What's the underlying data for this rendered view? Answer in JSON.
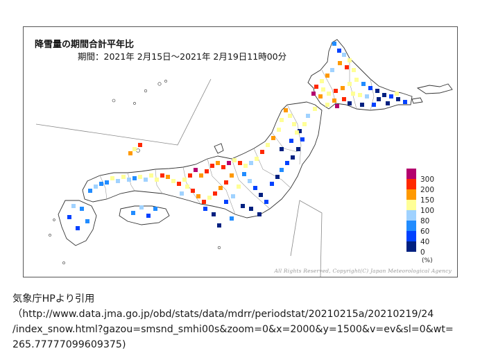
{
  "map": {
    "title": "降雪量の期間合計平年比",
    "period": "期間：2021年 2月15日～2021年 2月19日11時00分",
    "copyright": "All Rights Reserved, Copyright(C) Japan Meteorological Agency",
    "legend": {
      "unit": "(%)",
      "levels": [
        {
          "label": "300",
          "color": "#b4006e"
        },
        {
          "label": "200",
          "color": "#ff2800"
        },
        {
          "label": "150",
          "color": "#ff9900"
        },
        {
          "label": "100",
          "color": "#ffff96"
        },
        {
          "label": "80",
          "color": "#a0d2ff"
        },
        {
          "label": "60",
          "color": "#218cff"
        },
        {
          "label": "40",
          "color": "#0041ff"
        },
        {
          "label": "0",
          "color": "#002080"
        }
      ]
    }
  },
  "caption": {
    "line1": "気象庁HPより引用",
    "line2": "（http://www.data.jma.go.jp/obd/stats/data/mdrr/periodstat/20210215a/20210219/24",
    "line3": "/index_snow.html?gazou=smsnd_smhi00s&zoom=0&x=2000&y=1500&v=ev&sl=0&wt=",
    "line4": "265.77777099609375)"
  }
}
